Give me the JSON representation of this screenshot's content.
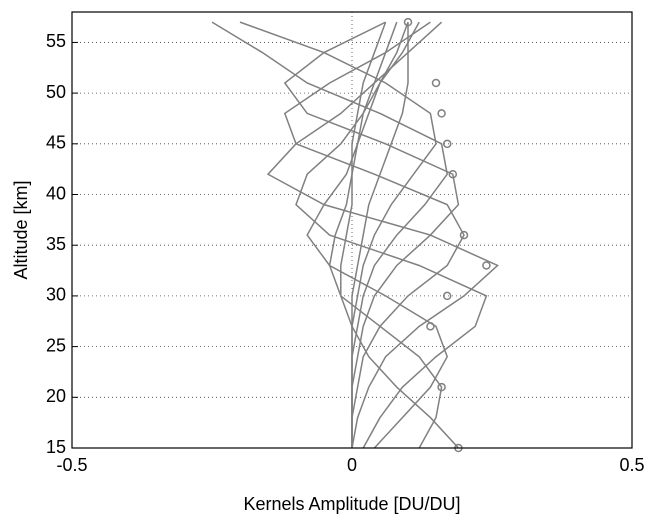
{
  "chart_data": {
    "type": "line",
    "xlabel": "Kernels Amplitude [DU/DU]",
    "ylabel": "Altitude [km]",
    "y": [
      15,
      18,
      21,
      24,
      27,
      30,
      33,
      36,
      39,
      42,
      45,
      48,
      51,
      54,
      57
    ],
    "color": "#808080",
    "series": [
      {
        "values": [
          0.19,
          0.14,
          0.08,
          0.03,
          0.0,
          -0.02,
          -0.02,
          -0.01,
          0,
          0,
          0,
          0.01,
          0.02,
          0.04,
          0.06
        ]
      },
      {
        "values": [
          0.12,
          0.15,
          0.16,
          0.12,
          0.05,
          -0.02,
          -0.04,
          -0.03,
          -0.01,
          0,
          0.01,
          0.02,
          0.04,
          0.06,
          0.08
        ]
      },
      {
        "values": [
          0.04,
          0.09,
          0.14,
          0.17,
          0.15,
          0.06,
          -0.04,
          -0.08,
          -0.05,
          -0.01,
          0.01,
          0.03,
          0.05,
          0.08,
          0.1
        ]
      },
      {
        "values": [
          0.02,
          0.05,
          0.09,
          0.15,
          0.22,
          0.24,
          0.12,
          -0.04,
          -0.1,
          -0.08,
          -0.02,
          0.02,
          0.05,
          0.09,
          0.12
        ]
      },
      {
        "values": [
          0,
          0.01,
          0.03,
          0.06,
          0.12,
          0.2,
          0.26,
          0.14,
          -0.05,
          -0.15,
          -0.1,
          -0.02,
          0.04,
          0.1,
          0.16
        ]
      },
      {
        "values": [
          0,
          0,
          0.01,
          0.02,
          0.05,
          0.1,
          0.17,
          0.2,
          0.17,
          0.04,
          -0.1,
          -0.12,
          -0.04,
          0.06,
          0.14
        ]
      },
      {
        "values": [
          0,
          0,
          0,
          0.01,
          0.02,
          0.04,
          0.08,
          0.14,
          0.19,
          0.18,
          0.06,
          -0.08,
          -0.12,
          -0.05,
          0.06
        ]
      },
      {
        "values": [
          0,
          0,
          0,
          0,
          0.01,
          0.02,
          0.04,
          0.08,
          0.13,
          0.17,
          0.16,
          0.05,
          -0.08,
          -0.16,
          -0.25
        ]
      },
      {
        "values": [
          0,
          0,
          0,
          0,
          0,
          0.01,
          0.02,
          0.04,
          0.07,
          0.11,
          0.15,
          0.14,
          0.06,
          -0.05,
          -0.2
        ]
      },
      {
        "values": [
          0,
          0,
          0,
          0,
          0,
          0,
          0.01,
          0.02,
          0.03,
          0.05,
          0.07,
          0.09,
          0.1,
          0.1,
          0.1
        ]
      }
    ],
    "markers": {
      "x": [
        0.19,
        0.16,
        0.14,
        0.17,
        0.24,
        0.2,
        0.18,
        0.17,
        0.16,
        0.15,
        0.1
      ],
      "y": [
        15,
        21,
        27,
        30,
        33,
        36,
        42,
        45,
        48,
        51,
        57
      ]
    },
    "xlim": [
      -0.5,
      0.5
    ],
    "xticks": [
      -0.5,
      0,
      0.5
    ],
    "ylim": [
      15,
      58
    ],
    "yticks": [
      15,
      20,
      25,
      30,
      35,
      40,
      45,
      50,
      55
    ],
    "grid": true
  }
}
